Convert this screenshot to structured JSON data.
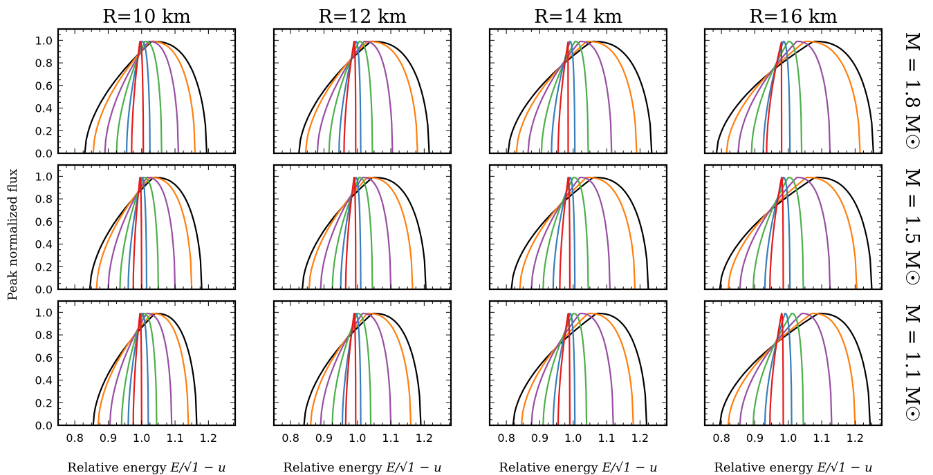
{
  "figure": {
    "ylabel": "Peak normalized flux",
    "xlabel_text": "Relative energy ",
    "xlabel_math": "E/√1 − u",
    "col_titles": [
      "R=10 km",
      "R=12 km",
      "R=14 km",
      "R=16 km"
    ],
    "row_labels": [
      "M = 1.8 M☉",
      "M = 1.5 M☉",
      "M = 1.1 M☉"
    ],
    "colors": {
      "black": "#000000",
      "orange": "#ff7f0e",
      "purple": "#984ea3",
      "green": "#4daf4a",
      "blue": "#377eb8",
      "red": "#e41a1c"
    }
  },
  "chart_data": {
    "type": "line",
    "layout": "3x4 grid of panels",
    "xlim": [
      0.75,
      1.28
    ],
    "ylim": [
      0.0,
      1.1
    ],
    "xticks": [
      "0.8",
      "0.9",
      "1.0",
      "1.1",
      "1.2"
    ],
    "yticks": [
      "0.0",
      "0.2",
      "0.4",
      "0.6",
      "0.8",
      "1.0"
    ],
    "grid": false,
    "legend": "none",
    "series_colors": [
      "#000000",
      "#ff7f0e",
      "#984ea3",
      "#4daf4a",
      "#377eb8",
      "#e41a1c"
    ],
    "panels": [
      {
        "R": "10 km",
        "M": "1.8",
        "peak": 0.99,
        "series": [
          {
            "color": "#000000",
            "lo": 0.83,
            "hi": 1.195,
            "peak_x": 1.03
          },
          {
            "color": "#ff7f0e",
            "lo": 0.855,
            "hi": 1.16,
            "peak_x": 1.025
          },
          {
            "color": "#984ea3",
            "lo": 0.89,
            "hi": 1.11,
            "peak_x": 1.02
          },
          {
            "color": "#4daf4a",
            "lo": 0.925,
            "hi": 1.06,
            "peak_x": 1.01
          },
          {
            "color": "#377eb8",
            "lo": 0.955,
            "hi": 1.025,
            "peak_x": 1.0
          },
          {
            "color": "#e41a1c",
            "lo": 0.97,
            "hi": 1.005,
            "peak_x": 0.995
          }
        ]
      },
      {
        "R": "12 km",
        "M": "1.8",
        "peak": 0.99,
        "series": [
          {
            "color": "#000000",
            "lo": 0.825,
            "hi": 1.215,
            "peak_x": 1.04
          },
          {
            "color": "#ff7f0e",
            "lo": 0.845,
            "hi": 1.18,
            "peak_x": 1.03
          },
          {
            "color": "#984ea3",
            "lo": 0.88,
            "hi": 1.105,
            "peak_x": 1.02
          },
          {
            "color": "#4daf4a",
            "lo": 0.915,
            "hi": 1.045,
            "peak_x": 1.005
          },
          {
            "color": "#377eb8",
            "lo": 0.945,
            "hi": 1.01,
            "peak_x": 0.995
          },
          {
            "color": "#e41a1c",
            "lo": 0.96,
            "hi": 0.995,
            "peak_x": 0.99
          }
        ]
      },
      {
        "R": "14 km",
        "M": "1.8",
        "peak": 0.99,
        "series": [
          {
            "color": "#000000",
            "lo": 0.805,
            "hi": 1.235,
            "peak_x": 1.055
          },
          {
            "color": "#ff7f0e",
            "lo": 0.83,
            "hi": 1.19,
            "peak_x": 1.04
          },
          {
            "color": "#984ea3",
            "lo": 0.865,
            "hi": 1.115,
            "peak_x": 1.02
          },
          {
            "color": "#4daf4a",
            "lo": 0.905,
            "hi": 1.045,
            "peak_x": 1.005
          },
          {
            "color": "#377eb8",
            "lo": 0.935,
            "hi": 1.005,
            "peak_x": 0.99
          },
          {
            "color": "#e41a1c",
            "lo": 0.955,
            "hi": 0.985,
            "peak_x": 0.985
          }
        ]
      },
      {
        "R": "16 km",
        "M": "1.8",
        "peak": 0.99,
        "series": [
          {
            "color": "#000000",
            "lo": 0.785,
            "hi": 1.255,
            "peak_x": 1.075
          },
          {
            "color": "#ff7f0e",
            "lo": 0.815,
            "hi": 1.215,
            "peak_x": 1.05
          },
          {
            "color": "#984ea3",
            "lo": 0.85,
            "hi": 1.125,
            "peak_x": 1.025
          },
          {
            "color": "#4daf4a",
            "lo": 0.89,
            "hi": 1.04,
            "peak_x": 1.0
          },
          {
            "color": "#377eb8",
            "lo": 0.925,
            "hi": 1.005,
            "peak_x": 0.985
          },
          {
            "color": "#e41a1c",
            "lo": 0.935,
            "hi": 0.98,
            "peak_x": 0.98
          }
        ]
      },
      {
        "R": "10 km",
        "M": "1.5",
        "peak": 0.99,
        "series": [
          {
            "color": "#000000",
            "lo": 0.845,
            "hi": 1.18,
            "peak_x": 1.035
          },
          {
            "color": "#ff7f0e",
            "lo": 0.865,
            "hi": 1.15,
            "peak_x": 1.025
          },
          {
            "color": "#984ea3",
            "lo": 0.9,
            "hi": 1.1,
            "peak_x": 1.015
          },
          {
            "color": "#4daf4a",
            "lo": 0.935,
            "hi": 1.05,
            "peak_x": 1.005
          },
          {
            "color": "#377eb8",
            "lo": 0.96,
            "hi": 1.015,
            "peak_x": 1.0
          },
          {
            "color": "#e41a1c",
            "lo": 0.975,
            "hi": 1.0,
            "peak_x": 0.995
          }
        ]
      },
      {
        "R": "12 km",
        "M": "1.5",
        "peak": 0.99,
        "series": [
          {
            "color": "#000000",
            "lo": 0.835,
            "hi": 1.205,
            "peak_x": 1.045
          },
          {
            "color": "#ff7f0e",
            "lo": 0.855,
            "hi": 1.165,
            "peak_x": 1.03
          },
          {
            "color": "#984ea3",
            "lo": 0.89,
            "hi": 1.1,
            "peak_x": 1.015
          },
          {
            "color": "#4daf4a",
            "lo": 0.925,
            "hi": 1.045,
            "peak_x": 1.005
          },
          {
            "color": "#377eb8",
            "lo": 0.95,
            "hi": 1.01,
            "peak_x": 0.995
          },
          {
            "color": "#e41a1c",
            "lo": 0.965,
            "hi": 0.995,
            "peak_x": 0.99
          }
        ]
      },
      {
        "R": "14 km",
        "M": "1.5",
        "peak": 0.99,
        "series": [
          {
            "color": "#000000",
            "lo": 0.815,
            "hi": 1.225,
            "peak_x": 1.06
          },
          {
            "color": "#ff7f0e",
            "lo": 0.84,
            "hi": 1.185,
            "peak_x": 1.04
          },
          {
            "color": "#984ea3",
            "lo": 0.875,
            "hi": 1.11,
            "peak_x": 1.02
          },
          {
            "color": "#4daf4a",
            "lo": 0.91,
            "hi": 1.045,
            "peak_x": 1.0
          },
          {
            "color": "#377eb8",
            "lo": 0.94,
            "hi": 1.005,
            "peak_x": 0.99
          },
          {
            "color": "#e41a1c",
            "lo": 0.96,
            "hi": 0.99,
            "peak_x": 0.985
          }
        ]
      },
      {
        "R": "16 km",
        "M": "1.5",
        "peak": 0.99,
        "series": [
          {
            "color": "#000000",
            "lo": 0.795,
            "hi": 1.25,
            "peak_x": 1.08
          },
          {
            "color": "#ff7f0e",
            "lo": 0.82,
            "hi": 1.205,
            "peak_x": 1.055
          },
          {
            "color": "#984ea3",
            "lo": 0.855,
            "hi": 1.125,
            "peak_x": 1.025
          },
          {
            "color": "#4daf4a",
            "lo": 0.895,
            "hi": 1.045,
            "peak_x": 1.0
          },
          {
            "color": "#377eb8",
            "lo": 0.93,
            "hi": 1.005,
            "peak_x": 0.985
          },
          {
            "color": "#e41a1c",
            "lo": 0.945,
            "hi": 0.985,
            "peak_x": 0.98
          }
        ]
      },
      {
        "R": "10 km",
        "M": "1.1",
        "peak": 0.99,
        "series": [
          {
            "color": "#000000",
            "lo": 0.855,
            "hi": 1.165,
            "peak_x": 1.04
          },
          {
            "color": "#ff7f0e",
            "lo": 0.87,
            "hi": 1.14,
            "peak_x": 1.03
          },
          {
            "color": "#984ea3",
            "lo": 0.905,
            "hi": 1.09,
            "peak_x": 1.015
          },
          {
            "color": "#4daf4a",
            "lo": 0.94,
            "hi": 1.045,
            "peak_x": 1.005
          },
          {
            "color": "#377eb8",
            "lo": 0.96,
            "hi": 1.02,
            "peak_x": 1.0
          },
          {
            "color": "#e41a1c",
            "lo": 0.975,
            "hi": 1.0,
            "peak_x": 0.995
          }
        ]
      },
      {
        "R": "12 km",
        "M": "1.1",
        "peak": 0.99,
        "series": [
          {
            "color": "#000000",
            "lo": 0.84,
            "hi": 1.19,
            "peak_x": 1.045
          },
          {
            "color": "#ff7f0e",
            "lo": 0.86,
            "hi": 1.16,
            "peak_x": 1.03
          },
          {
            "color": "#984ea3",
            "lo": 0.89,
            "hi": 1.1,
            "peak_x": 1.015
          },
          {
            "color": "#4daf4a",
            "lo": 0.925,
            "hi": 1.04,
            "peak_x": 1.0
          },
          {
            "color": "#377eb8",
            "lo": 0.955,
            "hi": 1.01,
            "peak_x": 0.995
          },
          {
            "color": "#e41a1c",
            "lo": 0.965,
            "hi": 0.995,
            "peak_x": 0.99
          }
        ]
      },
      {
        "R": "14 km",
        "M": "1.1",
        "peak": 0.99,
        "series": [
          {
            "color": "#000000",
            "lo": 0.82,
            "hi": 1.22,
            "peak_x": 1.07
          },
          {
            "color": "#ff7f0e",
            "lo": 0.845,
            "hi": 1.18,
            "peak_x": 1.045
          },
          {
            "color": "#984ea3",
            "lo": 0.875,
            "hi": 1.12,
            "peak_x": 1.02
          },
          {
            "color": "#4daf4a",
            "lo": 0.91,
            "hi": 1.04,
            "peak_x": 1.0
          },
          {
            "color": "#377eb8",
            "lo": 0.94,
            "hi": 1.005,
            "peak_x": 0.99
          },
          {
            "color": "#e41a1c",
            "lo": 0.955,
            "hi": 0.99,
            "peak_x": 0.985
          }
        ]
      },
      {
        "R": "16 km",
        "M": "1.1",
        "peak": 0.99,
        "series": [
          {
            "color": "#000000",
            "lo": 0.795,
            "hi": 1.245,
            "peak_x": 1.09
          },
          {
            "color": "#ff7f0e",
            "lo": 0.82,
            "hi": 1.2,
            "peak_x": 1.07
          },
          {
            "color": "#984ea3",
            "lo": 0.855,
            "hi": 1.13,
            "peak_x": 1.04
          },
          {
            "color": "#4daf4a",
            "lo": 0.895,
            "hi": 1.045,
            "peak_x": 1.01
          },
          {
            "color": "#377eb8",
            "lo": 0.93,
            "hi": 1.01,
            "peak_x": 0.99
          },
          {
            "color": "#e41a1c",
            "lo": 0.945,
            "hi": 0.985,
            "peak_x": 0.98
          }
        ]
      }
    ]
  }
}
